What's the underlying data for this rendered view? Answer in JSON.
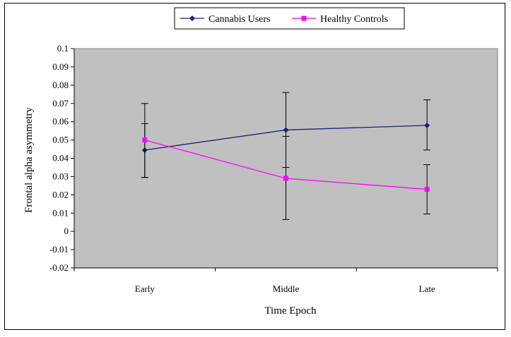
{
  "chart_data": {
    "type": "line",
    "title": "",
    "xlabel": "Time Epoch",
    "ylabel": "Frontal alpha asymmetry",
    "categories": [
      "Early",
      "Middle",
      "Late"
    ],
    "ylim": [
      -0.02,
      0.1
    ],
    "yticks": [
      0.1,
      0.09,
      0.08,
      0.07,
      0.06,
      0.05,
      0.04,
      0.03,
      0.02,
      0.01,
      0,
      -0.01,
      -0.02
    ],
    "ytick_labels": [
      "0.1",
      "0.09",
      "0.08",
      "0.07",
      "0.06",
      "0.05",
      "0.04",
      "0.03",
      "0.02",
      "0.01",
      "0",
      "-0.01",
      "-0.02"
    ],
    "grid": false,
    "plot_background": "#c0c0c0",
    "legend_position": "top-center",
    "series": [
      {
        "name": "Cannabis Users",
        "color": "#1f1f7a",
        "marker": "diamond",
        "values": [
          0.0445,
          0.0555,
          0.058
        ],
        "error_lower": [
          0.0295,
          0.035,
          0.0445
        ],
        "error_upper": [
          0.059,
          0.076,
          0.072
        ]
      },
      {
        "name": "Healthy Controls",
        "color": "#ff00ff",
        "marker": "square",
        "values": [
          0.05,
          0.029,
          0.023
        ],
        "error_lower": [
          0.0295,
          0.0065,
          0.0095
        ],
        "error_upper": [
          0.07,
          0.052,
          0.0365
        ]
      }
    ]
  }
}
